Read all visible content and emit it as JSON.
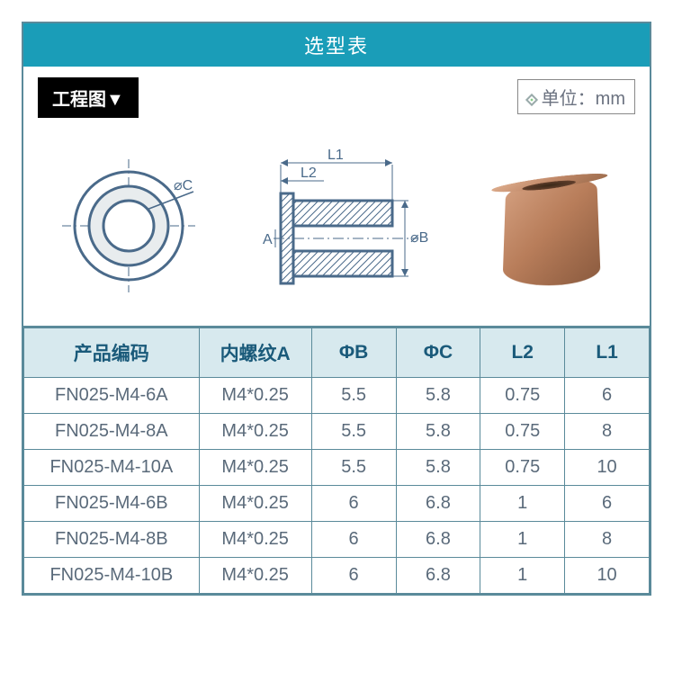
{
  "title": "选型表",
  "eng_label": "工程图▼",
  "unit_label": "单位：mm",
  "diagram": {
    "dim_labels": {
      "phiC": "⌀C",
      "phiB": "⌀B",
      "L1": "L1",
      "L2": "L2",
      "A": "A"
    },
    "front": {
      "outer_r": 60,
      "mid_r": 44,
      "inner_r": 28,
      "stroke": "#4a6a8a",
      "fill_mid": "#e8ecee"
    },
    "section": {
      "stroke": "#4a6a8a",
      "hatch": "#4a6a8a",
      "flange_h": 18,
      "body_w": 110,
      "body_h": 90,
      "bore": 40
    },
    "render_colors": {
      "light": "#e0b090",
      "mid": "#c08868",
      "dark": "#8a5a3e"
    }
  },
  "table": {
    "headers": [
      "产品编码",
      "内螺纹A",
      "ΦB",
      "ΦC",
      "L2",
      "L1"
    ],
    "header_bg": "#d7e9ee",
    "header_color": "#1a5a7a",
    "border_color": "#5a8a9a",
    "rows": [
      [
        "FN025-M4-6A",
        "M4*0.25",
        "5.5",
        "5.8",
        "0.75",
        "6"
      ],
      [
        "FN025-M4-8A",
        "M4*0.25",
        "5.5",
        "5.8",
        "0.75",
        "8"
      ],
      [
        "FN025-M4-10A",
        "M4*0.25",
        "5.5",
        "5.8",
        "0.75",
        "10"
      ],
      [
        "FN025-M4-6B",
        "M4*0.25",
        "6",
        "6.8",
        "1",
        "6"
      ],
      [
        "FN025-M4-8B",
        "M4*0.25",
        "6",
        "6.8",
        "1",
        "8"
      ],
      [
        "FN025-M4-10B",
        "M4*0.25",
        "6",
        "6.8",
        "1",
        "10"
      ]
    ]
  },
  "colors": {
    "title_bg": "#1a9db8",
    "title_fg": "#ffffff",
    "text": "#5a6a7a"
  }
}
